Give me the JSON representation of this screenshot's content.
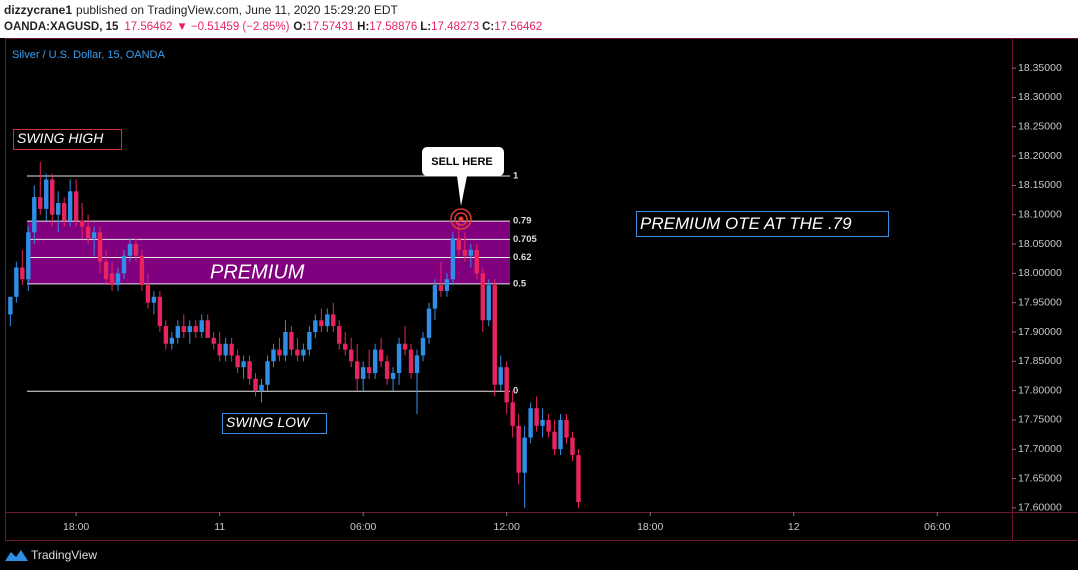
{
  "header": {
    "author": "dizzycrane1",
    "published": "published on TradingView.com, June 11, 2020 15:29:20 EDT",
    "symbol": "OANDA:XAGUSD, 15",
    "last": "17.56462",
    "change": "▼ −0.51459 (−2.85%)",
    "ohlc": [
      {
        "label": "O:",
        "value": "17.57431"
      },
      {
        "label": "H:",
        "value": "17.58876"
      },
      {
        "label": "L:",
        "value": "17.48273"
      },
      {
        "label": "C:",
        "value": "17.56462"
      }
    ]
  },
  "footer": {
    "brand": "TradingView"
  },
  "chart_data": {
    "type": "candlestick",
    "title": "Silver / U.S. Dollar, 15, OANDA",
    "up_color": "#2f8fe6",
    "down_color": "#e8245f",
    "x": [
      -11,
      -10,
      -9,
      -8,
      -7,
      -6,
      -5,
      -4,
      -3,
      -2,
      -1,
      0,
      1,
      2,
      3,
      4,
      5,
      6,
      7,
      8,
      9,
      10,
      11,
      12,
      13,
      14,
      15,
      16,
      17,
      18,
      19,
      20,
      21,
      22,
      23,
      24,
      25,
      26,
      27,
      28,
      29,
      30,
      31,
      32,
      33,
      34,
      35,
      36,
      37,
      38,
      39,
      40,
      41,
      42,
      43,
      44,
      45,
      46,
      47,
      48,
      49,
      50,
      51,
      52,
      53,
      54,
      55,
      56,
      57,
      58,
      59,
      60,
      61,
      62,
      63,
      64,
      65,
      66,
      67,
      68,
      69,
      70,
      71,
      72,
      73,
      74,
      75,
      76,
      77,
      78,
      79,
      80,
      81,
      82,
      83,
      84
    ],
    "open": [
      17.93,
      17.96,
      18.01,
      17.99,
      18.07,
      18.13,
      18.11,
      18.16,
      18.1,
      18.12,
      18.09,
      18.14,
      18.09,
      18.08,
      18.06,
      18.07,
      18.02,
      18.0,
      17.98,
      18.0,
      18.03,
      18.05,
      18.03,
      17.98,
      17.95,
      17.96,
      17.91,
      17.88,
      17.89,
      17.91,
      17.9,
      17.91,
      17.9,
      17.92,
      17.89,
      17.88,
      17.86,
      17.88,
      17.86,
      17.84,
      17.85,
      17.82,
      17.8,
      17.81,
      17.85,
      17.87,
      17.86,
      17.9,
      17.87,
      17.86,
      17.87,
      17.9,
      17.92,
      17.91,
      17.93,
      17.91,
      17.88,
      17.87,
      17.85,
      17.82,
      17.84,
      17.83,
      17.87,
      17.85,
      17.82,
      17.83,
      17.88,
      17.87,
      17.83,
      17.86,
      17.89,
      17.94,
      17.98,
      17.97,
      17.99,
      18.06,
      18.04,
      18.03,
      18.04,
      18.0,
      17.92,
      17.98,
      17.81,
      17.84,
      17.78,
      17.74,
      17.66,
      17.72,
      17.77,
      17.74,
      17.75,
      17.73,
      17.7,
      17.75,
      17.72,
      17.69
    ],
    "high": [
      17.96,
      18.02,
      18.04,
      18.08,
      18.15,
      18.19,
      18.17,
      18.17,
      18.14,
      18.13,
      18.16,
      18.16,
      18.12,
      18.1,
      18.08,
      18.08,
      18.04,
      18.02,
      18.01,
      18.04,
      18.06,
      18.06,
      18.04,
      18.0,
      17.97,
      17.97,
      17.92,
      17.9,
      17.92,
      17.93,
      17.92,
      17.92,
      17.93,
      17.93,
      17.9,
      17.9,
      17.89,
      17.89,
      17.87,
      17.86,
      17.86,
      17.83,
      17.82,
      17.86,
      17.88,
      17.89,
      17.92,
      17.91,
      17.89,
      17.88,
      17.91,
      17.93,
      17.94,
      17.94,
      17.95,
      17.92,
      17.9,
      17.89,
      17.88,
      17.85,
      17.87,
      17.88,
      17.89,
      17.86,
      17.84,
      17.89,
      17.91,
      17.88,
      17.87,
      17.9,
      17.95,
      17.99,
      18.02,
      18.0,
      18.07,
      18.09,
      18.07,
      18.05,
      18.05,
      18.01,
      17.99,
      17.99,
      17.86,
      17.85,
      17.8,
      17.76,
      17.74,
      17.78,
      17.79,
      17.77,
      17.76,
      17.75,
      17.76,
      17.76,
      17.73,
      17.7
    ],
    "low": [
      17.91,
      17.95,
      17.98,
      17.97,
      18.05,
      18.1,
      18.09,
      18.08,
      18.07,
      18.08,
      18.08,
      18.08,
      18.06,
      18.05,
      18.03,
      18.0,
      17.98,
      17.97,
      17.97,
      17.99,
      18.02,
      18.02,
      17.97,
      17.94,
      17.93,
      17.9,
      17.87,
      17.87,
      17.88,
      17.89,
      17.88,
      17.89,
      17.89,
      17.89,
      17.87,
      17.85,
      17.85,
      17.85,
      17.83,
      17.82,
      17.81,
      17.79,
      17.78,
      17.8,
      17.84,
      17.85,
      17.85,
      17.86,
      17.85,
      17.85,
      17.86,
      17.89,
      17.9,
      17.9,
      17.9,
      17.87,
      17.86,
      17.84,
      17.8,
      17.8,
      17.82,
      17.82,
      17.84,
      17.81,
      17.8,
      17.81,
      17.86,
      17.82,
      17.76,
      17.85,
      17.88,
      17.92,
      17.96,
      17.96,
      17.98,
      18.03,
      18.02,
      18.01,
      17.99,
      17.9,
      17.91,
      17.79,
      17.8,
      17.76,
      17.72,
      17.64,
      17.6,
      17.71,
      17.73,
      17.72,
      17.72,
      17.69,
      17.69,
      17.71,
      17.68,
      17.6
    ],
    "close": [
      17.96,
      18.01,
      17.99,
      18.07,
      18.13,
      18.11,
      18.16,
      18.1,
      18.12,
      18.09,
      18.14,
      18.09,
      18.08,
      18.06,
      18.07,
      18.02,
      17.99,
      17.98,
      18.0,
      18.03,
      18.05,
      18.03,
      17.98,
      17.95,
      17.96,
      17.91,
      17.88,
      17.89,
      17.91,
      17.9,
      17.91,
      17.9,
      17.92,
      17.89,
      17.88,
      17.86,
      17.88,
      17.86,
      17.84,
      17.85,
      17.82,
      17.8,
      17.81,
      17.85,
      17.87,
      17.86,
      17.9,
      17.87,
      17.86,
      17.87,
      17.9,
      17.92,
      17.91,
      17.93,
      17.91,
      17.88,
      17.87,
      17.85,
      17.82,
      17.84,
      17.83,
      17.87,
      17.85,
      17.82,
      17.83,
      17.88,
      17.87,
      17.83,
      17.86,
      17.89,
      17.94,
      17.98,
      17.97,
      17.99,
      18.06,
      18.04,
      18.03,
      18.04,
      18.0,
      17.92,
      17.98,
      17.81,
      17.84,
      17.78,
      17.74,
      17.66,
      17.72,
      17.77,
      17.74,
      17.75,
      17.73,
      17.7,
      17.75,
      17.72,
      17.69,
      17.61
    ],
    "xlim": [
      -12.4,
      156.5
    ],
    "xticks": [
      {
        "value": 0,
        "label": "18:00"
      },
      {
        "value": 24,
        "label": "11"
      },
      {
        "value": 48,
        "label": "06:00"
      },
      {
        "value": 72,
        "label": "12:00"
      },
      {
        "value": 96,
        "label": "18:00"
      },
      {
        "value": 120,
        "label": "12"
      },
      {
        "value": 144,
        "label": "06:00"
      }
    ],
    "ylim": [
      17.593,
      18.398
    ],
    "yticks": [
      {
        "value": 18.35,
        "label": "18.35000"
      },
      {
        "value": 18.3,
        "label": "18.30000"
      },
      {
        "value": 18.25,
        "label": "18.25000"
      },
      {
        "value": 18.2,
        "label": "18.20000"
      },
      {
        "value": 18.15,
        "label": "18.15000"
      },
      {
        "value": 18.1,
        "label": "18.10000"
      },
      {
        "value": 18.05,
        "label": "18.05000"
      },
      {
        "value": 18.0,
        "label": "18.00000"
      },
      {
        "value": 17.95,
        "label": "17.95000"
      },
      {
        "value": 17.9,
        "label": "17.90000"
      },
      {
        "value": 17.85,
        "label": "17.85000"
      },
      {
        "value": 17.8,
        "label": "17.80000"
      },
      {
        "value": 17.75,
        "label": "17.75000"
      },
      {
        "value": 17.7,
        "label": "17.70000"
      },
      {
        "value": 17.65,
        "label": "17.65000"
      },
      {
        "value": 17.6,
        "label": "17.60000"
      }
    ],
    "fib": {
      "color": "#800080",
      "levels": [
        {
          "ratio": 1,
          "price": 18.166
        },
        {
          "ratio": 0.79,
          "price": 18.089
        },
        {
          "ratio": 0.705,
          "price": 18.058
        },
        {
          "ratio": 0.62,
          "price": 18.027
        },
        {
          "ratio": 0.5,
          "price": 17.982
        },
        {
          "ratio": 0,
          "price": 17.799
        }
      ]
    },
    "annotations": {
      "swing_high": "SWING HIGH",
      "swing_low": "SWING LOW",
      "zone": "PREMIUM",
      "note": "PREMIUM OTE AT THE .79",
      "callout": "SELL HERE"
    }
  }
}
